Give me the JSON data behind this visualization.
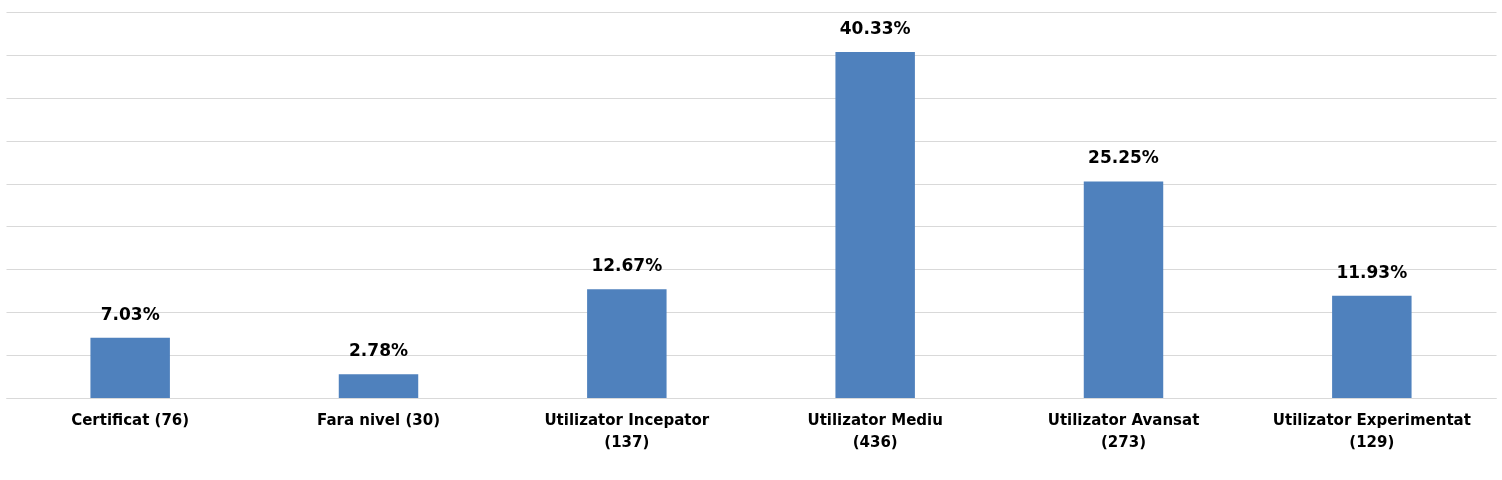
{
  "chart_data": {
    "type": "bar",
    "categories": [
      "Certificat (76)",
      "Fara nivel (30)",
      "Utilizator Incepator (137)",
      "Utilizator Mediu (436)",
      "Utilizator Avansat (273)",
      "Utilizator Experimentat (129)"
    ],
    "values": [
      7.03,
      2.78,
      12.67,
      40.33,
      25.25,
      11.93
    ],
    "value_labels": [
      "7.03%",
      "2.78%",
      "12.67%",
      "40.33%",
      "25.25%",
      "11.93%"
    ],
    "color": "#4f81bd",
    "ylim": [
      0,
      45
    ],
    "yticks": [
      {
        "value": 0,
        "label": null
      },
      {
        "value": 5,
        "label": null
      },
      {
        "value": 10,
        "label": null
      },
      {
        "value": 15,
        "label": null
      },
      {
        "value": 20,
        "label": null
      },
      {
        "value": 25,
        "label": null
      },
      {
        "value": 30,
        "label": null
      },
      {
        "value": 35,
        "label": null
      },
      {
        "value": 40,
        "label": null
      },
      {
        "value": 45,
        "label": null
      }
    ],
    "grid": "y",
    "tick_labels": "x"
  }
}
